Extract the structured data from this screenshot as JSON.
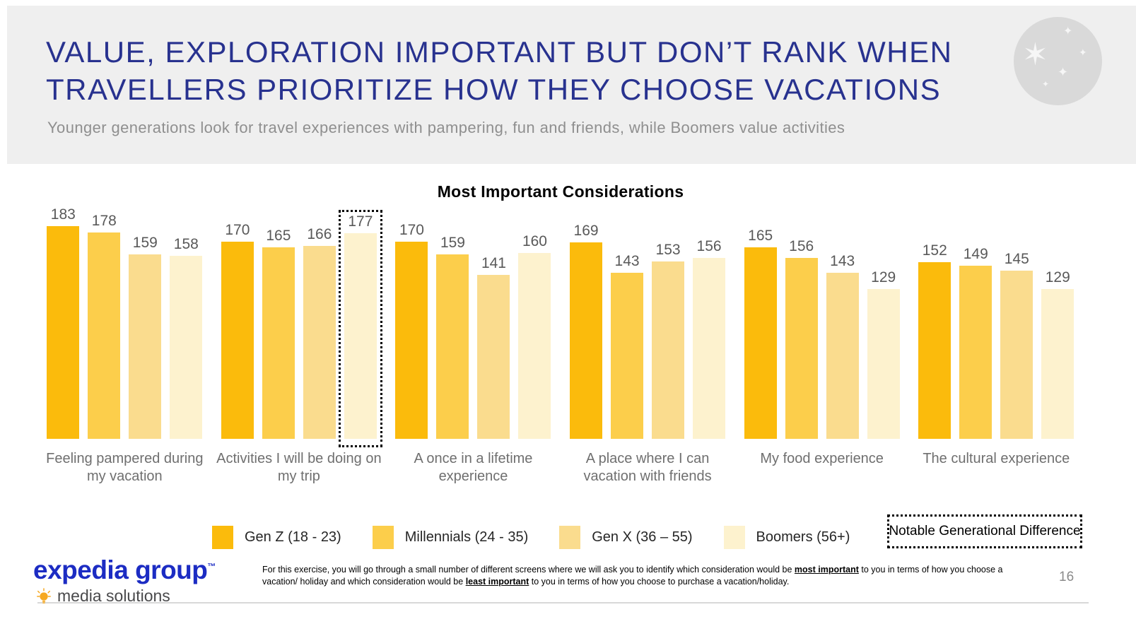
{
  "slide": {
    "title_line1": "VALUE, EXPLORATION IMPORTANT BUT DON’T RANK WHEN",
    "title_line2": "TRAVELLERS PRIORITIZE HOW THEY CHOOSE VACATIONS",
    "subtitle": "Younger generations look for travel experiences with pampering, fun and friends, while Boomers value activities",
    "page_number": "16",
    "header_bg": "#efefef",
    "title_color": "#28328f"
  },
  "chart_data": {
    "type": "bar",
    "title": "Most Important Considerations",
    "categories": [
      "Feeling pampered during my vacation",
      "Activities I will be doing on my trip",
      "A once in a lifetime experience",
      "A place where I can vacation with friends",
      "My food experience",
      "The cultural experience"
    ],
    "series": [
      {
        "name": "Gen Z (18 - 23)",
        "color": "#fbbb0c",
        "values": [
          183,
          170,
          170,
          169,
          165,
          152
        ]
      },
      {
        "name": "Millennials (24 - 35)",
        "color": "#fcce4b",
        "values": [
          178,
          165,
          159,
          143,
          156,
          149
        ]
      },
      {
        "name": "Gen X (36 – 55)",
        "color": "#fadc8e",
        "values": [
          159,
          166,
          141,
          153,
          143,
          145
        ]
      },
      {
        "name": "Boomers (56+)",
        "color": "#fdf2ce",
        "values": [
          158,
          177,
          160,
          156,
          129,
          129
        ]
      }
    ],
    "ylim": [
      0,
      190
    ],
    "grid": false,
    "value_labels": true,
    "legend_position": "bottom",
    "highlight": {
      "category_index": 1,
      "series_index": 3,
      "label": "Notable Generational Difference"
    }
  },
  "logo": {
    "brand": "expedia group",
    "trademark": "™",
    "sub_brand": "media solutions",
    "brand_color": "#1c2cc3",
    "bulb_color": "#f6a820"
  },
  "footnote": {
    "part1": "For this exercise, you will go through a small number of different screens where we will ask you to identify which consideration would be ",
    "bold1": "most important",
    "part2": " to you in terms of how you choose a vacation/ holiday and which consideration would be ",
    "bold2": "least important",
    "part3": " to you in terms of how you choose to purchase a vacation/holiday."
  }
}
